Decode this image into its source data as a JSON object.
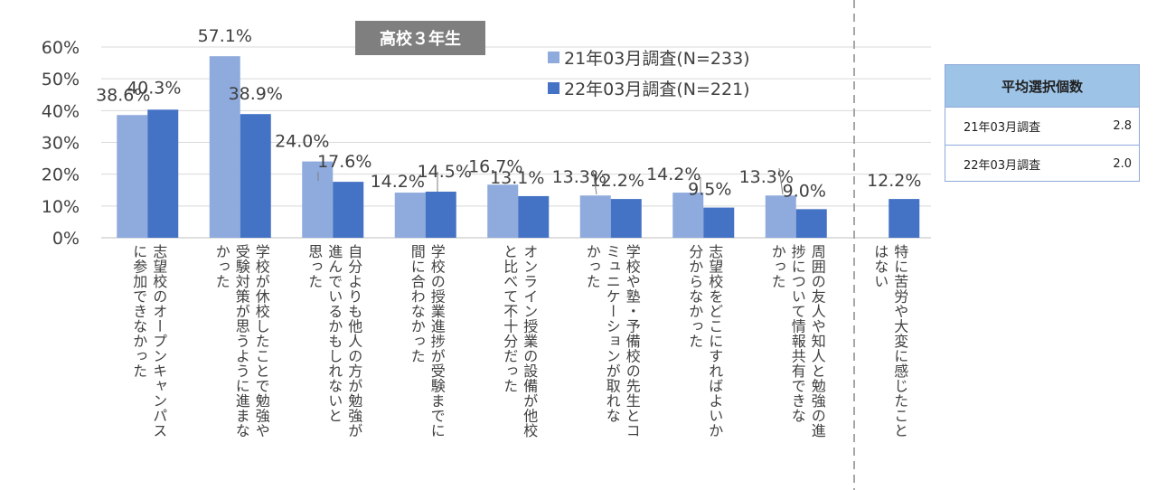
{
  "chart_data": {
    "type": "bar",
    "badge": "高校３年生",
    "categories": [
      "志望校のオープンキャンパスに参加できなかった",
      "学校が休校したことで勉強や受験対策が思うように進まなかった",
      "自分よりも他人の方が勉強が進んでいるかもしれないと思った",
      "学校の授業進捗が受験までに間に合わなかった",
      "オンライン授業の設備が他校と比べて不十分だった",
      "学校や塾・予備校の先生とコミュニケーションが取れなかった",
      "志望校をどこにすればよいか分からなかった",
      "周囲の友人や知人と勉強の進捗について情報共有できなかった",
      "特に苦労や大変に感じたことはない"
    ],
    "category_lines": [
      [
        "志望校のオープンキャンパス",
        "に参加できなかった"
      ],
      [
        "学校が休校したことで勉強や",
        "受験対策が思うように進まな",
        "かった"
      ],
      [
        "自分よりも他人の方が勉強が",
        "進んでいるかもしれないと",
        "思った"
      ],
      [
        "学校の授業進捗が受験までに",
        "間に合わなかった"
      ],
      [
        "オンライン授業の設備が他校",
        "と比べて不十分だった"
      ],
      [
        "学校や塾・予備校の先生とコ",
        "ミュニケーションが取れな",
        "かった"
      ],
      [
        "志望校をどこにすればよいか",
        "分からなかった"
      ],
      [
        "周囲の友人や知人と勉強の進",
        "捗について情報共有できな",
        "かった"
      ],
      [
        "特に苦労や大変に感じたこと",
        "はない"
      ]
    ],
    "series": [
      {
        "name": "21年03月調査(N=233)",
        "color": "#8faadc",
        "values": [
          38.6,
          57.1,
          24.0,
          14.2,
          16.7,
          13.3,
          14.2,
          13.3,
          null
        ]
      },
      {
        "name": "22年03月調査(N=221)",
        "color": "#4472c4",
        "values": [
          40.3,
          38.9,
          17.6,
          14.5,
          13.1,
          12.2,
          9.5,
          9.0,
          12.2
        ]
      }
    ],
    "ylim": [
      0,
      60
    ],
    "yticks": [
      0,
      10,
      20,
      30,
      40,
      50,
      60
    ],
    "ytick_labels": [
      "0%",
      "10%",
      "20%",
      "30%",
      "40%",
      "50%",
      "60%"
    ],
    "value_format": "percent_one_decimal",
    "grid": true,
    "legend": "top-center"
  },
  "avg_table": {
    "title": "平均選択個数",
    "rows": [
      {
        "label": "21年03月調査",
        "value": "2.8"
      },
      {
        "label": "22年03月調査",
        "value": "2.0"
      }
    ]
  }
}
